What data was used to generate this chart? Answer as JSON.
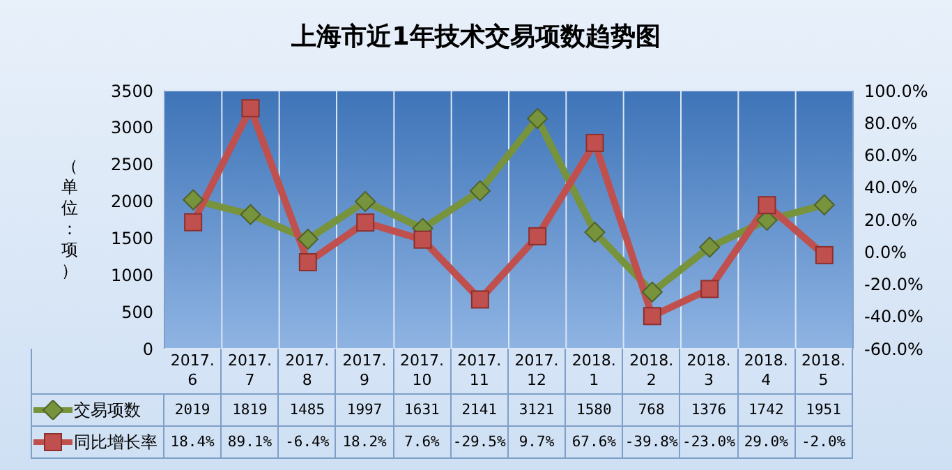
{
  "chart_data": {
    "type": "line",
    "title": "上海市近1年技术交易项数趋势图",
    "ylabel": "（单位：项）",
    "categories": [
      "2017.6",
      "2017.7",
      "2017.8",
      "2017.9",
      "2017.10",
      "2017.11",
      "2017.12",
      "2018.1",
      "2018.2",
      "2018.3",
      "2018.4",
      "2018.5"
    ],
    "series": [
      {
        "name": "交易项数",
        "color": "#77933c",
        "marker": "diamond",
        "values": [
          2019,
          1819,
          1485,
          1997,
          1631,
          2141,
          3121,
          1580,
          768,
          1376,
          1742,
          1951
        ],
        "value_labels": [
          "2019",
          "1819",
          "1485",
          "1997",
          "1631",
          "2141",
          "3121",
          "1580",
          "768",
          "1376",
          "1742",
          "1951"
        ]
      },
      {
        "name": "同比增长率",
        "color": "#c0504d",
        "marker": "square",
        "axis": "y2",
        "values": [
          18.4,
          89.1,
          -6.4,
          18.2,
          7.6,
          -29.5,
          9.7,
          67.6,
          -39.8,
          -23.0,
          29.0,
          -2.0
        ],
        "value_labels": [
          "18.4%",
          "89.1%",
          "-6.4%",
          "18.2%",
          "7.6%",
          "-29.5%",
          "9.7%",
          "67.6%",
          "-39.8%",
          "-23.0%",
          "29.0%",
          "-2.0%"
        ]
      }
    ],
    "ylim": [
      0,
      3500
    ],
    "yticks": [
      0,
      500,
      1000,
      1500,
      2000,
      2500,
      3000,
      3500
    ],
    "y2lim": [
      -60,
      100
    ],
    "y2ticks": [
      {
        "value": -60,
        "label": "-60.0%"
      },
      {
        "value": -40,
        "label": "-40.0%"
      },
      {
        "value": -20,
        "label": "-20.0%"
      },
      {
        "value": 0,
        "label": "0.0%"
      },
      {
        "value": 20,
        "label": "20.0%"
      },
      {
        "value": 40,
        "label": "40.0%"
      },
      {
        "value": 60,
        "label": "60.0%"
      },
      {
        "value": 80,
        "label": "80.0%"
      },
      {
        "value": 100,
        "label": "100.0%"
      }
    ],
    "grid": true,
    "legend": "bottom"
  }
}
